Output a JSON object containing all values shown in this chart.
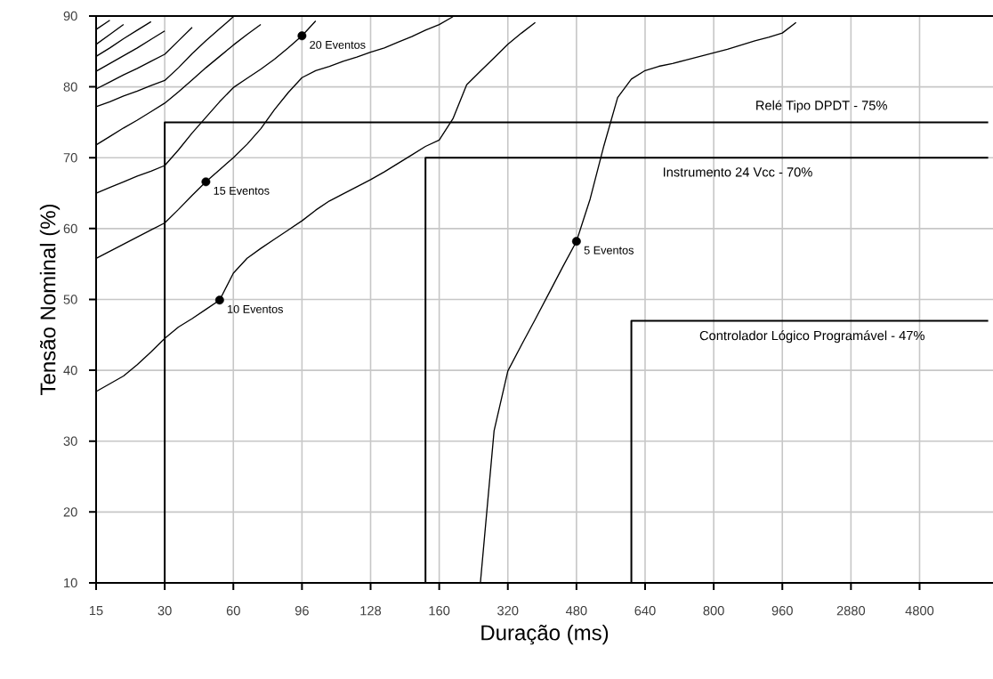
{
  "chart_data": {
    "type": "line",
    "xlabel": "Duração (ms)",
    "ylabel": "Tensão Nominal (%)",
    "ylim": [
      10,
      90
    ],
    "categories": [
      "15",
      null,
      null,
      null,
      null,
      "30",
      null,
      null,
      null,
      null,
      "60",
      null,
      null,
      null,
      null,
      "96",
      null,
      null,
      null,
      null,
      "128",
      null,
      null,
      null,
      null,
      "160",
      null,
      null,
      null,
      null,
      "320",
      null,
      null,
      null,
      null,
      "480",
      null,
      null,
      null,
      null,
      "640",
      null,
      null,
      null,
      null,
      "800",
      null,
      null,
      null,
      null,
      "960",
      null,
      null,
      null,
      null,
      "2880",
      null,
      null,
      null,
      null,
      "4800",
      null,
      null,
      null,
      null,
      null
    ],
    "yticks": [
      10,
      20,
      30,
      40,
      50,
      60,
      70,
      80,
      90
    ],
    "grid": true,
    "line_style": "solid",
    "series": [
      {
        "color": "#000000",
        "values": [
          null,
          null,
          null,
          null,
          null,
          null,
          null,
          null,
          null,
          null,
          null,
          null,
          null,
          null,
          null,
          null,
          null,
          null,
          null,
          null,
          null,
          null,
          null,
          null,
          null,
          null,
          null,
          null,
          10,
          31.5,
          39.9,
          43.6,
          47.2,
          50.9,
          54.6,
          58.2,
          64.2,
          71.7,
          78.5,
          81.1,
          82.3,
          82.9,
          83.3,
          83.8,
          84.3,
          84.8,
          85.3,
          85.9,
          86.5,
          87.0,
          87.6,
          89.1,
          null,
          null,
          null,
          null,
          null,
          null,
          null,
          null,
          null,
          null,
          null,
          null,
          null,
          null
        ]
      },
      {
        "color": "#000000",
        "values": [
          37,
          38.1,
          39.2,
          40.8,
          42.6,
          44.5,
          46.1,
          47.3,
          48.6,
          49.9,
          53.7,
          55.8,
          57.2,
          58.5,
          59.8,
          61.1,
          62.6,
          63.9,
          64.9,
          65.9,
          66.9,
          68.0,
          69.2,
          70.4,
          71.6,
          72.5,
          75.5,
          80.3,
          82.2,
          84.1,
          86.0,
          87.6,
          89.1,
          null,
          null,
          null,
          null,
          null,
          null,
          null,
          null,
          null,
          null,
          null,
          null,
          null,
          null,
          null,
          null,
          null,
          null,
          null,
          null,
          null,
          null,
          null,
          null,
          null,
          null,
          null,
          null,
          null,
          null,
          null,
          null,
          null
        ]
      },
      {
        "color": "#000000",
        "values": [
          55.8,
          56.8,
          57.8,
          58.8,
          59.8,
          60.8,
          62.7,
          64.7,
          66.6,
          68.3,
          70.0,
          71.9,
          74.1,
          76.8,
          79.2,
          81.3,
          82.3,
          82.9,
          83.6,
          84.2,
          84.9,
          85.5,
          86.3,
          87.1,
          88.0,
          88.8,
          89.9,
          null,
          null,
          null,
          null,
          null,
          null,
          null,
          null,
          null,
          null,
          null,
          null,
          null,
          null,
          null,
          null,
          null,
          null,
          null,
          null,
          null,
          null,
          null,
          null,
          null,
          null,
          null,
          null,
          null,
          null,
          null,
          null,
          null,
          null,
          null,
          null,
          null,
          null,
          null
        ]
      },
      {
        "color": "#000000",
        "values": [
          65,
          65.8,
          66.6,
          67.4,
          68.1,
          68.9,
          71.1,
          73.5,
          75.7,
          77.9,
          79.9,
          81.2,
          82.5,
          83.9,
          85.5,
          87.2,
          89.3,
          null,
          null,
          null,
          null,
          null,
          null,
          null,
          null,
          null,
          null,
          null,
          null,
          null,
          null,
          null,
          null,
          null,
          null,
          null,
          null,
          null,
          null,
          null,
          null,
          null,
          null,
          null,
          null,
          null,
          null,
          null,
          null,
          null,
          null,
          null,
          null,
          null,
          null,
          null,
          null,
          null,
          null,
          null,
          null,
          null,
          null,
          null,
          null,
          null
        ]
      },
      {
        "color": "#000000",
        "values": [
          71.8,
          73.0,
          74.2,
          75.3,
          76.5,
          77.7,
          79.3,
          81.0,
          82.7,
          84.3,
          85.9,
          87.4,
          88.8,
          null,
          null,
          null,
          null,
          null,
          null,
          null,
          null,
          null,
          null,
          null,
          null,
          null,
          null,
          null,
          null,
          null,
          null,
          null,
          null,
          null,
          null,
          null,
          null,
          null,
          null,
          null,
          null,
          null,
          null,
          null,
          null,
          null,
          null,
          null,
          null,
          null,
          null,
          null,
          null,
          null,
          null,
          null,
          null,
          null,
          null,
          null,
          null,
          null,
          null,
          null,
          null,
          null
        ]
      },
      {
        "color": "#000000",
        "values": [
          77.2,
          77.9,
          78.7,
          79.4,
          80.2,
          80.9,
          82.7,
          84.7,
          86.5,
          88.2,
          89.9,
          null,
          null,
          null,
          null,
          null,
          null,
          null,
          null,
          null,
          null,
          null,
          null,
          null,
          null,
          null,
          null,
          null,
          null,
          null,
          null,
          null,
          null,
          null,
          null,
          null,
          null,
          null,
          null,
          null,
          null,
          null,
          null,
          null,
          null,
          null,
          null,
          null,
          null,
          null,
          null,
          null,
          null,
          null,
          null,
          null,
          null,
          null,
          null,
          null,
          null,
          null,
          null,
          null,
          null,
          null
        ]
      },
      {
        "color": "#000000",
        "values": [
          79.7,
          80.7,
          81.7,
          82.6,
          83.6,
          84.6,
          86.5,
          88.4,
          null,
          null,
          null,
          null,
          null,
          null,
          null,
          null,
          null,
          null,
          null,
          null,
          null,
          null,
          null,
          null,
          null,
          null,
          null,
          null,
          null,
          null,
          null,
          null,
          null,
          null,
          null,
          null,
          null,
          null,
          null,
          null,
          null,
          null,
          null,
          null,
          null,
          null,
          null,
          null,
          null,
          null,
          null,
          null,
          null,
          null,
          null,
          null,
          null,
          null,
          null,
          null,
          null,
          null,
          null,
          null,
          null,
          null
        ]
      },
      {
        "color": "#000000",
        "values": [
          82.2,
          83.3,
          84.4,
          85.5,
          86.7,
          87.9,
          null,
          null,
          null,
          null,
          null,
          null,
          null,
          null,
          null,
          null,
          null,
          null,
          null,
          null,
          null,
          null,
          null,
          null,
          null,
          null,
          null,
          null,
          null,
          null,
          null,
          null,
          null,
          null,
          null,
          null,
          null,
          null,
          null,
          null,
          null,
          null,
          null,
          null,
          null,
          null,
          null,
          null,
          null,
          null,
          null,
          null,
          null,
          null,
          null,
          null,
          null,
          null,
          null,
          null,
          null,
          null,
          null,
          null,
          null,
          null
        ]
      },
      {
        "color": "#000000",
        "values": [
          84.3,
          85.5,
          86.8,
          88.0,
          89.2,
          null,
          null,
          null,
          null,
          null,
          null,
          null,
          null,
          null,
          null,
          null,
          null,
          null,
          null,
          null,
          null,
          null,
          null,
          null,
          null,
          null,
          null,
          null,
          null,
          null,
          null,
          null,
          null,
          null,
          null,
          null,
          null,
          null,
          null,
          null,
          null,
          null,
          null,
          null,
          null,
          null,
          null,
          null,
          null,
          null,
          null,
          null,
          null,
          null,
          null,
          null,
          null,
          null,
          null,
          null,
          null,
          null,
          null,
          null,
          null,
          null
        ]
      },
      {
        "color": "#000000",
        "values": [
          86,
          87.4,
          88.8,
          null,
          null,
          null,
          null,
          null,
          null,
          null,
          null,
          null,
          null,
          null,
          null,
          null,
          null,
          null,
          null,
          null,
          null,
          null,
          null,
          null,
          null,
          null,
          null,
          null,
          null,
          null,
          null,
          null,
          null,
          null,
          null,
          null,
          null,
          null,
          null,
          null,
          null,
          null,
          null,
          null,
          null,
          null,
          null,
          null,
          null,
          null,
          null,
          null,
          null,
          null,
          null,
          null,
          null,
          null,
          null,
          null,
          null,
          null,
          null,
          null,
          null,
          null
        ]
      },
      {
        "color": "#000000",
        "values": [
          88.1,
          89.4,
          null,
          null,
          null,
          null,
          null,
          null,
          null,
          null,
          null,
          null,
          null,
          null,
          null,
          null,
          null,
          null,
          null,
          null,
          null,
          null,
          null,
          null,
          null,
          null,
          null,
          null,
          null,
          null,
          null,
          null,
          null,
          null,
          null,
          null,
          null,
          null,
          null,
          null,
          null,
          null,
          null,
          null,
          null,
          null,
          null,
          null,
          null,
          null,
          null,
          null,
          null,
          null,
          null,
          null,
          null,
          null,
          null,
          null,
          null,
          null,
          null,
          null,
          null,
          null
        ]
      },
      {
        "type": "scatter",
        "marker": "circle",
        "color": "#000000",
        "values": [
          null,
          null,
          null,
          null,
          null,
          null,
          null,
          null,
          66.6,
          49.9,
          null,
          null,
          null,
          null,
          null,
          87.2,
          null,
          null,
          null,
          null,
          null,
          null,
          null,
          null,
          null,
          null,
          null,
          null,
          null,
          null,
          null,
          null,
          null,
          null,
          null,
          58.2,
          null,
          null,
          null,
          null,
          null,
          null,
          null,
          null,
          null,
          null,
          null,
          null,
          null,
          null,
          null,
          null,
          null,
          null,
          null,
          null,
          null,
          null,
          null,
          null,
          null,
          null,
          null,
          null,
          null,
          null
        ]
      },
      {
        "type": "step",
        "name": "Relé Tipo DPDT - 75%",
        "color": "#000000",
        "values": [
          null,
          null,
          null,
          null,
          10,
          75,
          75,
          75,
          75,
          75,
          75,
          75,
          75,
          75,
          75,
          75,
          75,
          75,
          75,
          75,
          75,
          75,
          75,
          75,
          75,
          75,
          75,
          75,
          75,
          75,
          75,
          75,
          75,
          75,
          75,
          75,
          75,
          75,
          75,
          75,
          75,
          75,
          75,
          75,
          75,
          75,
          75,
          75,
          75,
          75,
          75,
          75,
          75,
          75,
          75,
          75,
          75,
          75,
          75,
          75,
          75,
          75,
          75,
          75,
          75,
          75
        ]
      },
      {
        "type": "step",
        "name": "Instrumento 24 Vcc - 70%",
        "color": "#000000",
        "values": [
          null,
          null,
          null,
          null,
          null,
          null,
          null,
          null,
          null,
          null,
          null,
          null,
          null,
          null,
          null,
          null,
          null,
          null,
          null,
          null,
          null,
          null,
          null,
          10,
          70,
          70,
          70,
          70,
          70,
          70,
          70,
          70,
          70,
          70,
          70,
          70,
          70,
          70,
          70,
          70,
          70,
          70,
          70,
          70,
          70,
          70,
          70,
          70,
          70,
          70,
          70,
          70,
          70,
          70,
          70,
          70,
          70,
          70,
          70,
          70,
          70,
          70,
          70,
          70,
          70,
          70
        ]
      },
      {
        "type": "step",
        "name": "Controlador Lógico Programável - 47%",
        "color": "#000000",
        "values": [
          null,
          null,
          null,
          null,
          null,
          null,
          null,
          null,
          null,
          null,
          null,
          null,
          null,
          null,
          null,
          null,
          null,
          null,
          null,
          null,
          null,
          null,
          null,
          null,
          null,
          null,
          null,
          null,
          null,
          null,
          null,
          null,
          null,
          null,
          null,
          null,
          null,
          null,
          10,
          47,
          47,
          47,
          47,
          47,
          47,
          47,
          47,
          47,
          47,
          47,
          47,
          47,
          47,
          47,
          47,
          47,
          47,
          47,
          47,
          47,
          47,
          47,
          47,
          47,
          47,
          47
        ]
      }
    ],
    "annotations": [
      "15 Eventos",
      "10 Eventos",
      "20 Eventos",
      "5 Eventos"
    ]
  }
}
